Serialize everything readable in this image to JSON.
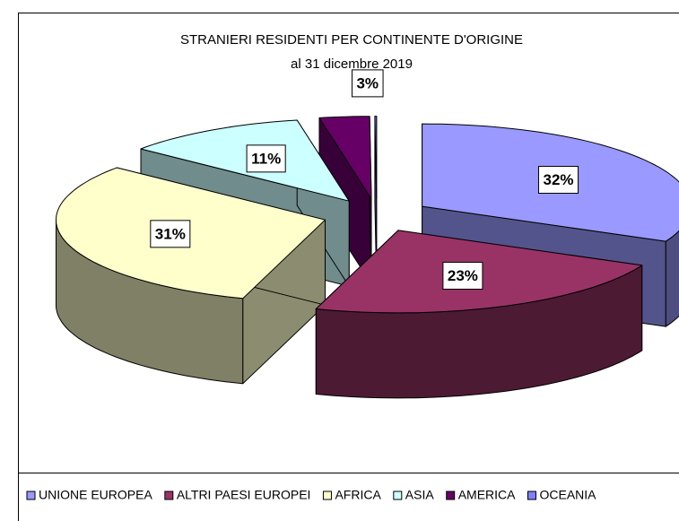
{
  "chart_data": {
    "type": "pie3d",
    "title": "STRANIERI RESIDENTI PER CONTINENTE D'ORIGINE",
    "subtitle": "al 31 dicembre 2019",
    "categories": [
      "UNIONE EUROPEA",
      "ALTRI PAESI EUROPEI",
      "AFRICA",
      "ASIA",
      "AMERICA",
      "OCEANIA"
    ],
    "values": [
      32,
      23,
      31,
      11,
      3,
      0.1
    ],
    "value_labels": [
      "32%",
      "23%",
      "31%",
      "11%",
      "3%",
      null
    ],
    "colors": [
      "#9999ff",
      "#993366",
      "#ffffcc",
      "#ccffff",
      "#660066",
      "#8080ff"
    ],
    "exploded": true,
    "legend": "bottom"
  }
}
